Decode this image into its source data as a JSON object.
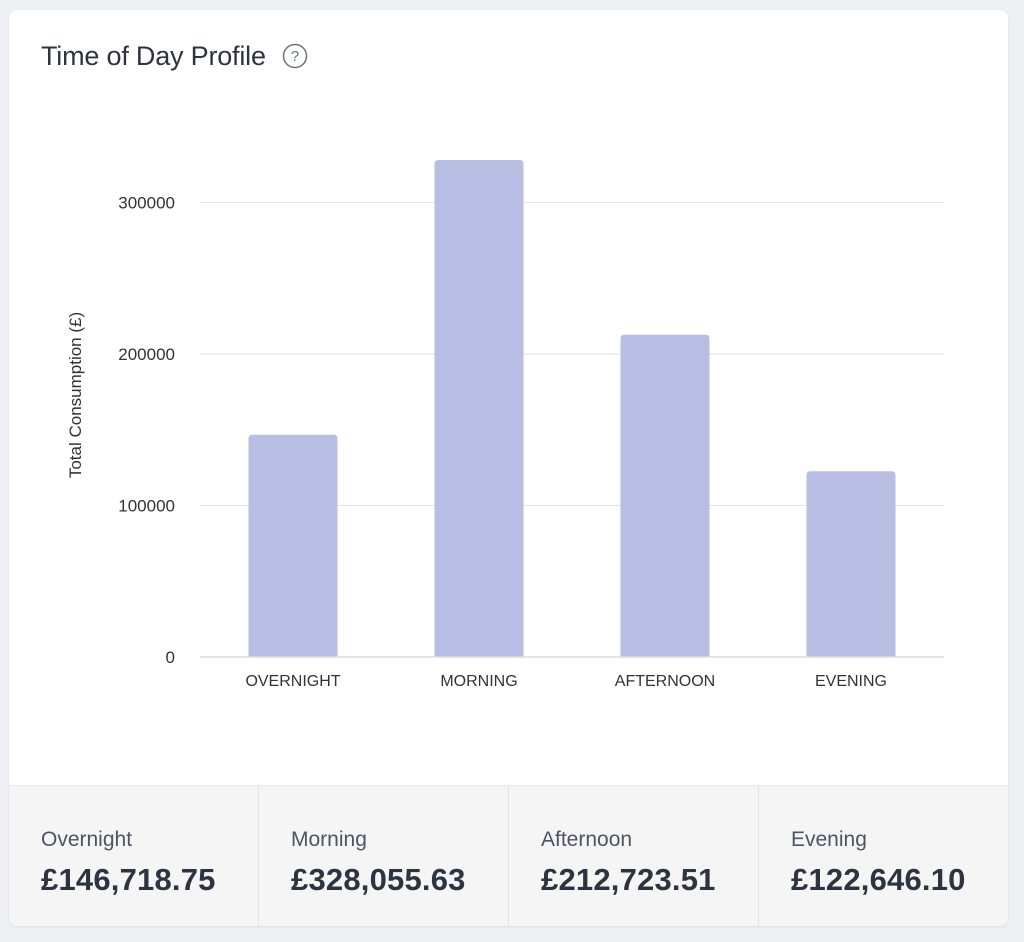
{
  "card": {
    "title": "Time of Day Profile",
    "help_icon": "question-circle-icon"
  },
  "chart_data": {
    "type": "bar",
    "categories": [
      "OVERNIGHT",
      "MORNING",
      "AFTERNOON",
      "EVENING"
    ],
    "values": [
      146718.75,
      328055.63,
      212723.51,
      122646.1
    ],
    "title": "",
    "xlabel": "",
    "ylabel": "Total Consumption (£)",
    "ylim": [
      0,
      360000
    ],
    "yticks": [
      0,
      100000,
      200000,
      300000
    ],
    "ytick_labels": [
      "0",
      "100000",
      "200000",
      "300000"
    ],
    "grid": true,
    "bar_color": "#b8bde4"
  },
  "summary": [
    {
      "label": "Overnight",
      "value": "£146,718.75"
    },
    {
      "label": "Morning",
      "value": "£328,055.63"
    },
    {
      "label": "Afternoon",
      "value": "£212,723.51"
    },
    {
      "label": "Evening",
      "value": "£122,646.10"
    }
  ],
  "colors": {
    "title_text": "#2c3441",
    "grid": "#e3e3e3",
    "axis_text": "#333333",
    "bar": "#b8bde4"
  }
}
